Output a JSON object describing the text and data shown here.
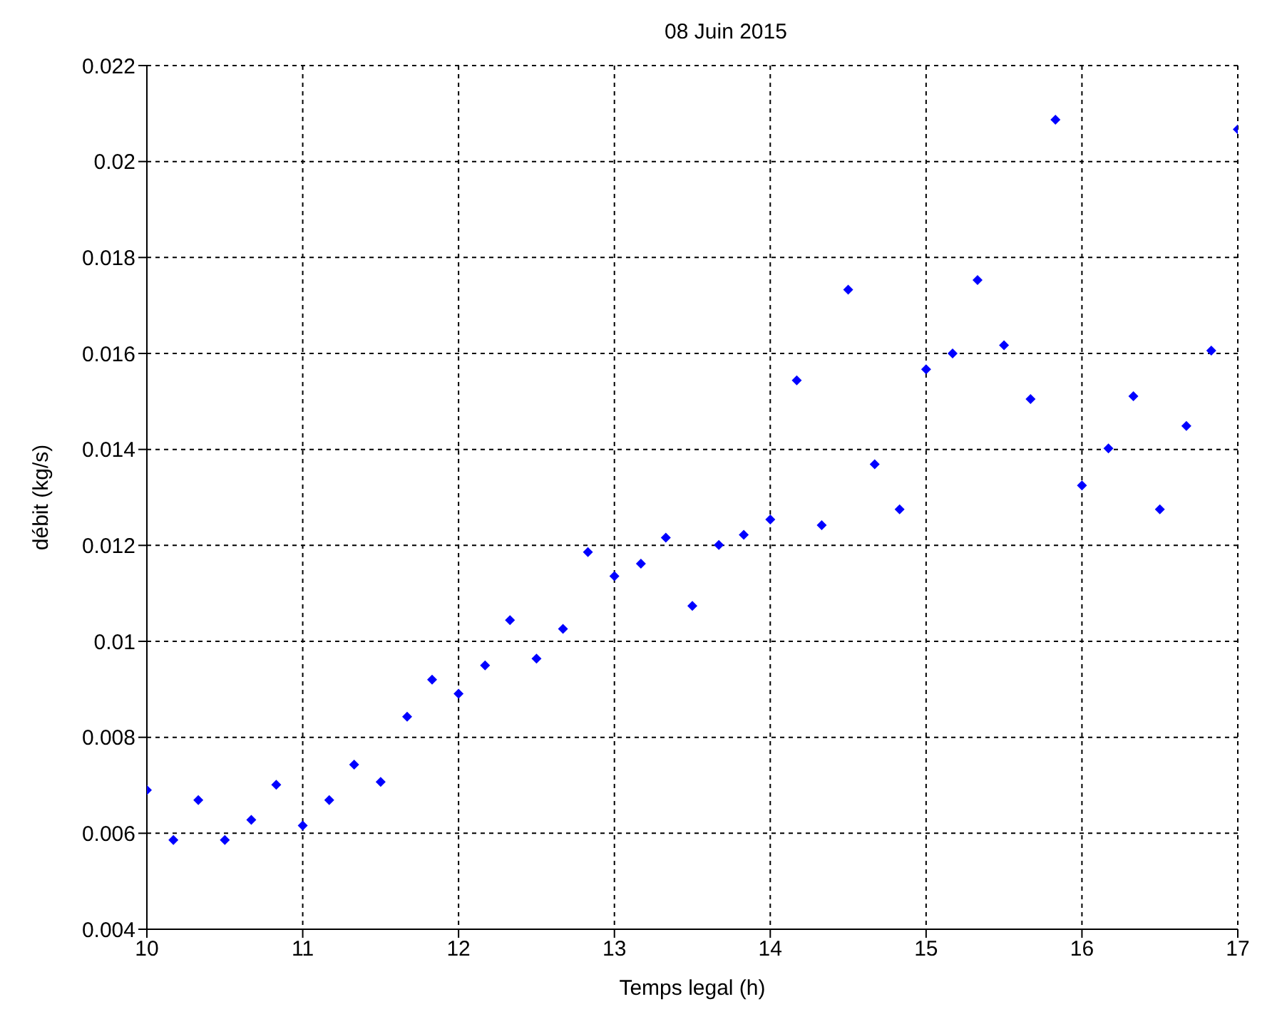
{
  "chart_data": {
    "type": "scatter",
    "title": "08 Juin 2015",
    "xlabel": "Temps legal (h)",
    "ylabel": "débit (kg/s)",
    "x": [
      10,
      10.17,
      10.33,
      10.5,
      10.67,
      10.83,
      11,
      11.17,
      11.33,
      11.5,
      11.67,
      11.83,
      12,
      12.17,
      12.33,
      12.5,
      12.67,
      12.83,
      13,
      13.17,
      13.33,
      13.5,
      13.67,
      13.83,
      14,
      14.17,
      14.33,
      14.5,
      14.67,
      14.83,
      15,
      15.17,
      15.33,
      15.5,
      15.67,
      15.83,
      16,
      16.17,
      16.33,
      16.5,
      16.67,
      16.83,
      17
    ],
    "series": [
      {
        "color": "#0000ff",
        "values": [
          0.0069,
          0.00586,
          0.00669,
          0.00586,
          0.00628,
          0.00701,
          0.00616,
          0.00669,
          0.00743,
          0.00707,
          0.00843,
          0.0092,
          0.00891,
          0.0095,
          0.01044,
          0.00964,
          0.01026,
          0.01186,
          0.01136,
          0.01162,
          0.01216,
          0.01074,
          0.01201,
          0.01222,
          0.01254,
          0.01544,
          0.01242,
          0.01733,
          0.01369,
          0.01275,
          0.01567,
          0.016,
          0.01753,
          0.01617,
          0.01505,
          0.02087,
          0.01325,
          0.01402,
          0.01511,
          0.01275,
          0.01449,
          0.01606,
          0.02067
        ]
      }
    ],
    "xlim": [
      10,
      17
    ],
    "xticks": [
      10,
      11,
      12,
      13,
      14,
      15,
      16,
      17
    ],
    "ylim": [
      0.004,
      0.022
    ],
    "yticks": [
      0.004,
      0.006,
      0.008,
      0.01,
      0.012,
      0.014,
      0.016,
      0.018,
      0.02,
      0.022
    ],
    "grid": true,
    "marker": "diamond",
    "legend": false
  }
}
